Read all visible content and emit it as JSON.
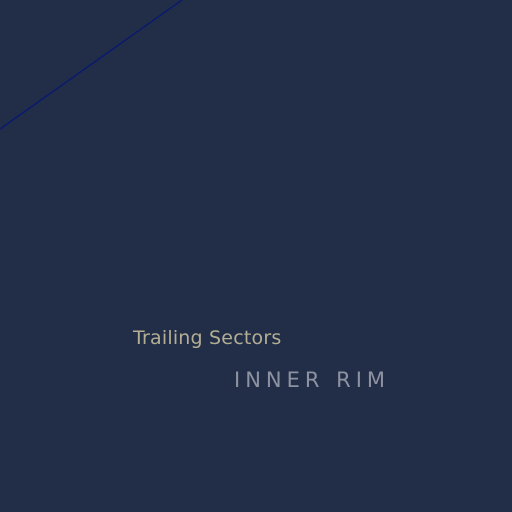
{
  "map": {
    "background": "#222e47",
    "route_color": "#0a1a6e",
    "labels": {
      "sector": "Trailing Sectors",
      "region": "INNER RIM"
    }
  }
}
